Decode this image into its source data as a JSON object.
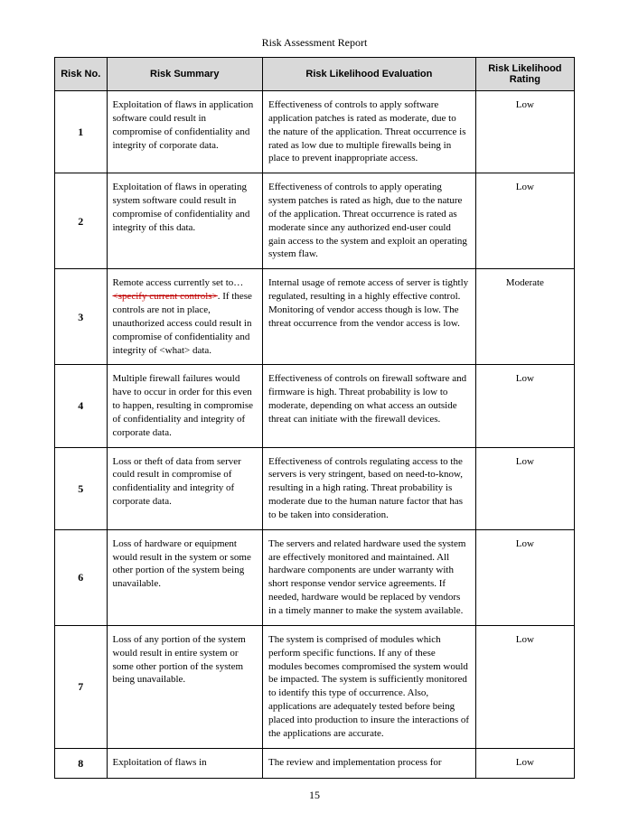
{
  "title": "Risk Assessment Report",
  "columns": [
    "Risk No.",
    "Risk Summary",
    "Risk Likelihood Evaluation",
    "Risk Likelihood Rating"
  ],
  "rows": [
    {
      "no": "1",
      "summary": "Exploitation of flaws in application software could result in compromise of confidentiality and integrity of corporate data.",
      "evaluation": "Effectiveness of controls to apply software application patches is rated as moderate, due to the nature of the application.  Threat occurrence is rated as low due to multiple firewalls being in place to prevent inappropriate access.",
      "rating": "Low"
    },
    {
      "no": "2",
      "summary": "Exploitation of flaws in operating system software could result in compromise of confidentiality and integrity of this data.",
      "evaluation": "Effectiveness of controls to apply operating system patches is rated as high, due to the nature of the application.  Threat occurrence is rated as moderate since any authorized end-user could gain access to the system and exploit an operating system flaw.",
      "rating": "Low"
    },
    {
      "no": "3",
      "summary_pre": "Remote access currently set to… ",
      "summary_red": "<specify current controls>",
      "summary_post": ". If these controls are not in place, unauthorized access could result in compromise of confidentiality and integrity of <what> data.",
      "evaluation": "Internal usage of remote access of server is tightly regulated, resulting in a highly effective control. Monitoring of vendor access though is low.  The threat occurrence from the vendor access is low.",
      "rating": "Moderate"
    },
    {
      "no": "4",
      "summary": "Multiple firewall failures would have to occur in order for this even to happen, resulting in compromise of confidentiality and integrity of corporate data.",
      "evaluation": "Effectiveness of controls on firewall software and firmware is high.  Threat probability is low to moderate, depending on what access an outside threat can initiate with the firewall devices.",
      "rating": "Low"
    },
    {
      "no": "5",
      "summary": "Loss or theft of data from server could result in compromise of confidentiality and integrity of corporate data.",
      "evaluation": "Effectiveness of controls regulating access to the servers is very stringent, based on need-to-know, resulting in a high rating.  Threat probability is moderate due to the human nature factor that has to be taken into consideration.",
      "rating": "Low"
    },
    {
      "no": "6",
      "summary": "Loss of hardware or equipment would result in the system or some other portion of the system being unavailable.",
      "evaluation": "The servers and related hardware used the system are effectively monitored and maintained.  All hardware components are under warranty with short response vendor service agreements.  If needed, hardware would be replaced by vendors in a timely manner to make the system available.",
      "rating": "Low"
    },
    {
      "no": "7",
      "summary": "Loss of any portion of the system would result in entire system or some other portion of the system being unavailable.",
      "evaluation": "The system is comprised of modules which perform specific functions.  If any of these modules becomes compromised the system would be impacted.  The system is sufficiently monitored to identify this type of occurrence.  Also, applications are adequately tested before being placed into production to insure the interactions of the applications are accurate.",
      "rating": "Low"
    },
    {
      "no": "8",
      "summary": "Exploitation of flaws in",
      "evaluation": "The review and implementation process for",
      "rating": "Low"
    }
  ],
  "styles": {
    "header_bg": "#d9d9d9",
    "border_color": "#000000",
    "red_text": "#c00000",
    "body_font_size_pt": 11,
    "header_font_size_pt": 11,
    "title_font_size_pt": 12
  },
  "page_number": "15"
}
